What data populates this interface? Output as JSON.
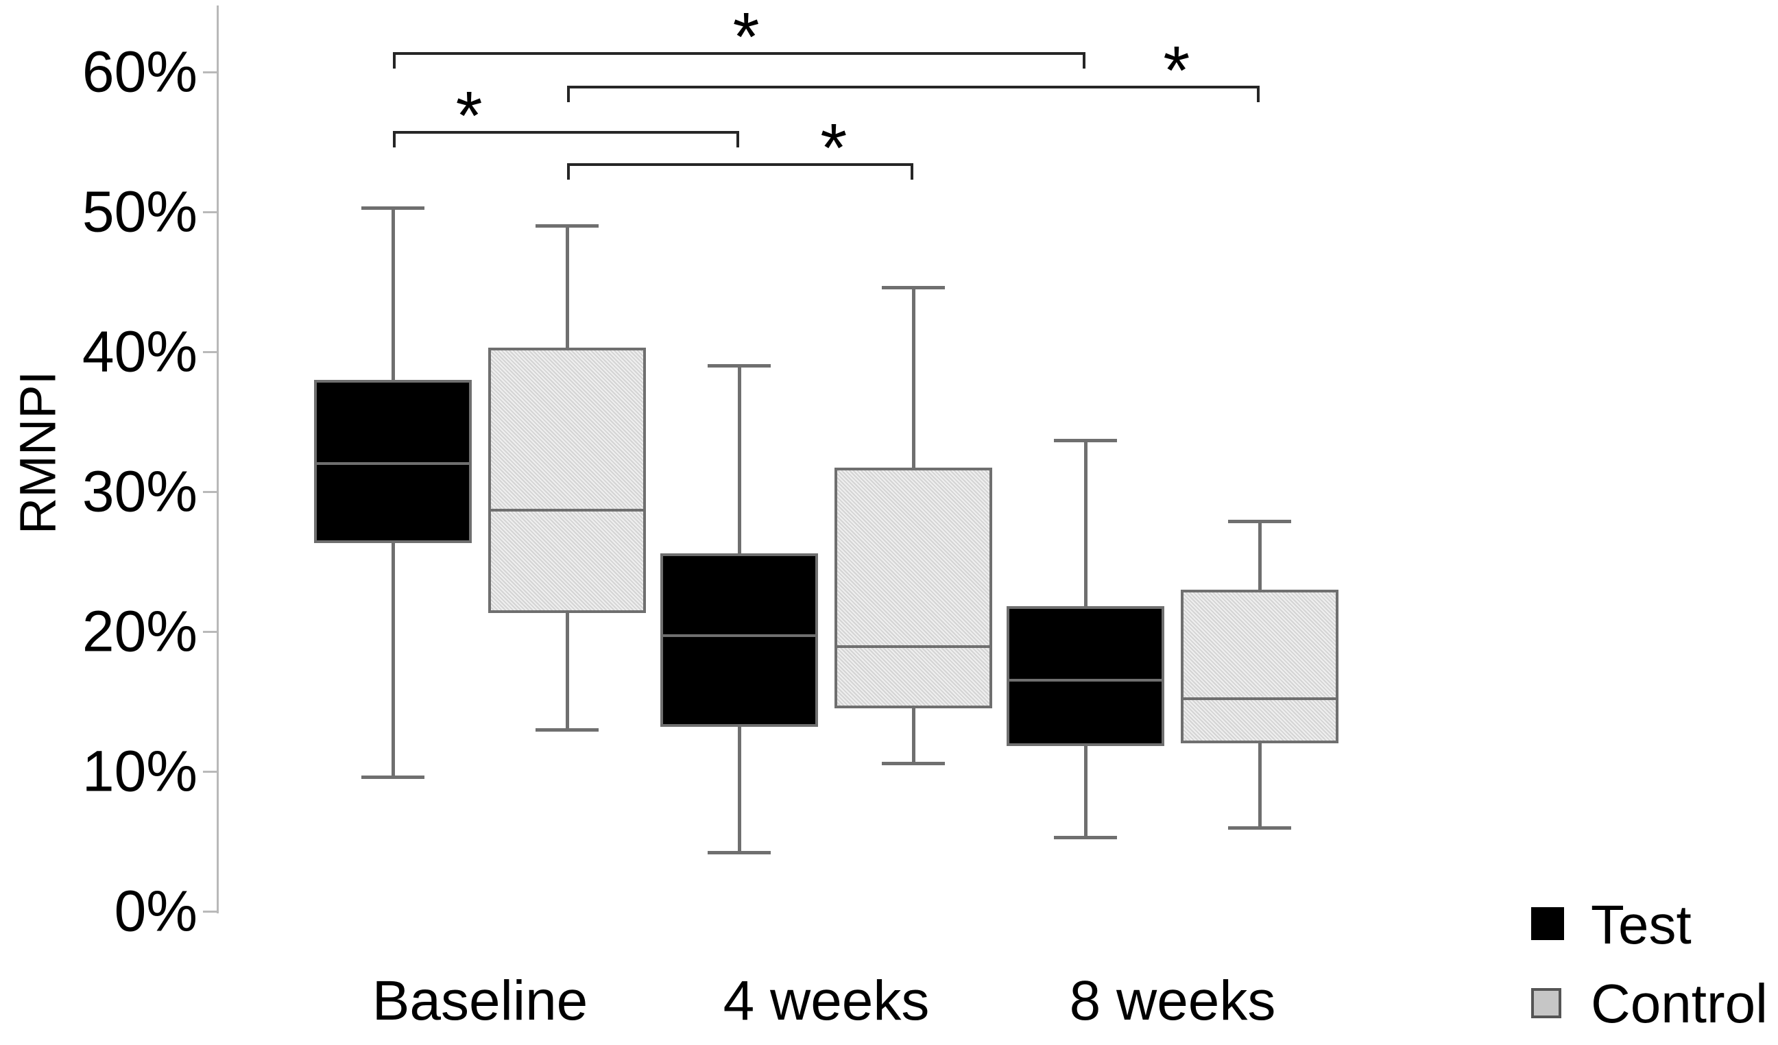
{
  "y_axis": {
    "title": "RMNPI",
    "tick_values": [
      0,
      10,
      20,
      30,
      40,
      50,
      60
    ],
    "tick_labels": [
      "0%",
      "10%",
      "20%",
      "30%",
      "40%",
      "50%",
      "60%"
    ],
    "max": 65
  },
  "x_axis": {
    "categories": [
      "Baseline",
      "4 weeks",
      "8 weeks"
    ]
  },
  "legend": {
    "position": "bottom-right",
    "items": [
      {
        "label": "Test",
        "swatch_color": "#000000",
        "swatch_border": "#000000"
      },
      {
        "label": "Control",
        "swatch_color": "#c6c6c6",
        "swatch_border": "#555555"
      }
    ]
  },
  "significance_symbol": "*",
  "colors": {
    "test_fill": "#000000",
    "control_fill": "#dcdcdc",
    "box_border": "#6f6f6f",
    "whisker": "#6f6f6f",
    "axis": "#b9b9b9",
    "bracket": "#262626",
    "text": "#000000",
    "background": "#ffffff"
  },
  "chart_data": {
    "type": "boxplot",
    "title": "",
    "xlabel": "",
    "ylabel": "RMNPI",
    "y_unit": "%",
    "ylim": [
      0,
      65
    ],
    "grid": false,
    "legend_position": "bottom-right",
    "categories": [
      "Baseline",
      "4 weeks",
      "8 weeks"
    ],
    "series": [
      {
        "name": "Test",
        "fill": "#000000",
        "boxes": [
          {
            "category": "Baseline",
            "whisker_low": 9.6,
            "q1": 26.3,
            "median": 32.0,
            "q3": 38.0,
            "whisker_high": 50.3
          },
          {
            "category": "4 weeks",
            "whisker_low": 4.2,
            "q1": 13.2,
            "median": 19.7,
            "q3": 25.6,
            "whisker_high": 39.0
          },
          {
            "category": "8 weeks",
            "whisker_low": 5.3,
            "q1": 11.8,
            "median": 16.5,
            "q3": 21.8,
            "whisker_high": 33.7
          }
        ]
      },
      {
        "name": "Control",
        "fill": "#dcdcdc",
        "boxes": [
          {
            "category": "Baseline",
            "whisker_low": 13.0,
            "q1": 21.3,
            "median": 28.7,
            "q3": 40.3,
            "whisker_high": 49.0
          },
          {
            "category": "4 weeks",
            "whisker_low": 10.6,
            "q1": 14.5,
            "median": 18.9,
            "q3": 31.7,
            "whisker_high": 44.6
          },
          {
            "category": "8 weeks",
            "whisker_low": 6.0,
            "q1": 12.0,
            "median": 15.2,
            "q3": 23.0,
            "whisker_high": 27.9
          }
        ]
      }
    ],
    "significance_brackets": [
      {
        "from": {
          "category": "Baseline",
          "series": "Test"
        },
        "to": {
          "category": "8 weeks",
          "series": "Test"
        },
        "level": 61.4,
        "label": "*",
        "label_position": 0.51
      },
      {
        "from": {
          "category": "Baseline",
          "series": "Control"
        },
        "to": {
          "category": "8 weeks",
          "series": "Control"
        },
        "level": 59.0,
        "label": "*",
        "label_position": 0.88
      },
      {
        "from": {
          "category": "Baseline",
          "series": "Test"
        },
        "to": {
          "category": "4 weeks",
          "series": "Test"
        },
        "level": 55.8,
        "label": "*",
        "label_position": 0.22
      },
      {
        "from": {
          "category": "Baseline",
          "series": "Control"
        },
        "to": {
          "category": "4 weeks",
          "series": "Control"
        },
        "level": 53.5,
        "label": "*",
        "label_position": 0.77
      }
    ]
  }
}
